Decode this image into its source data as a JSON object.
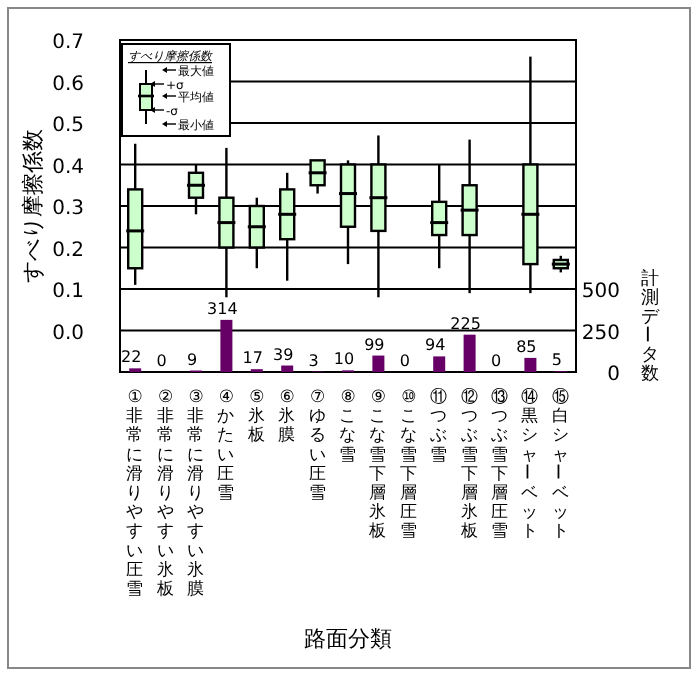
{
  "chart_data": {
    "type": "box",
    "xlabel": "路面分類",
    "ylabel": "すべり摩擦係数",
    "y2label": "計測データ数",
    "categories": [
      "①非常に滑りやすい圧雪",
      "②非常に滑りやすい氷板",
      "③非常に滑りやすい氷膜",
      "④かたい圧雪",
      "⑤氷板",
      "⑥氷膜",
      "⑦ゆるい圧雪",
      "⑧こな雪",
      "⑨こな雪下層氷板",
      "⑩こな雪下層圧雪",
      "⑪つぶ雪",
      "⑫つぶ雪下層氷板",
      "⑬つぶ雪下層圧雪",
      "⑭黒シャーベット",
      "⑮白シャーベット"
    ],
    "series": [
      {
        "type": "box",
        "color": "#ccffcc",
        "boxes": [
          {
            "low": 0.11,
            "q1": 0.15,
            "median": 0.24,
            "q3": 0.34,
            "high": 0.45
          },
          null,
          {
            "low": 0.28,
            "q1": 0.32,
            "median": 0.35,
            "q3": 0.38,
            "high": 0.4
          },
          {
            "low": 0.08,
            "q1": 0.2,
            "median": 0.26,
            "q3": 0.32,
            "high": 0.44
          },
          {
            "low": 0.15,
            "q1": 0.2,
            "median": 0.25,
            "q3": 0.3,
            "high": 0.32
          },
          {
            "low": 0.12,
            "q1": 0.22,
            "median": 0.28,
            "q3": 0.34,
            "high": 0.38
          },
          {
            "low": 0.33,
            "q1": 0.35,
            "median": 0.38,
            "q3": 0.41,
            "high": 0.41
          },
          {
            "low": 0.16,
            "q1": 0.25,
            "median": 0.33,
            "q3": 0.4,
            "high": 0.41
          },
          {
            "low": 0.08,
            "q1": 0.24,
            "median": 0.32,
            "q3": 0.4,
            "high": 0.47
          },
          null,
          {
            "low": 0.15,
            "q1": 0.23,
            "median": 0.26,
            "q3": 0.31,
            "high": 0.4
          },
          {
            "low": 0.09,
            "q1": 0.23,
            "median": 0.29,
            "q3": 0.35,
            "high": 0.46
          },
          null,
          {
            "low": 0.09,
            "q1": 0.16,
            "median": 0.28,
            "q3": 0.4,
            "high": 0.66
          },
          {
            "low": 0.14,
            "q1": 0.15,
            "median": 0.16,
            "q3": 0.17,
            "high": 0.18
          }
        ]
      },
      {
        "type": "bar",
        "axis": "y2",
        "color": "#660066",
        "values": [
          22,
          0,
          9,
          314,
          17,
          39,
          3,
          10,
          99,
          0,
          94,
          225,
          0,
          85,
          5
        ],
        "value_labels": [
          "22",
          "0",
          "9",
          "314",
          "17",
          "39",
          "3",
          "10",
          "99",
          "0",
          "94",
          "225",
          "0",
          "85",
          "5"
        ]
      }
    ],
    "ylim": [
      -0.1,
      0.7
    ],
    "yticks": [
      {
        "value": 0,
        "label": "0.0"
      },
      0.1,
      0.2,
      0.3,
      0.4,
      0.5,
      0.6,
      0.7
    ],
    "y2lim": [
      0,
      2000
    ],
    "y2ticks": [
      0,
      250,
      500
    ],
    "grid": "y",
    "annotations": [
      "すべり摩擦係数",
      "最大値",
      "+σ",
      "平均値",
      "-σ",
      "最小値"
    ]
  }
}
